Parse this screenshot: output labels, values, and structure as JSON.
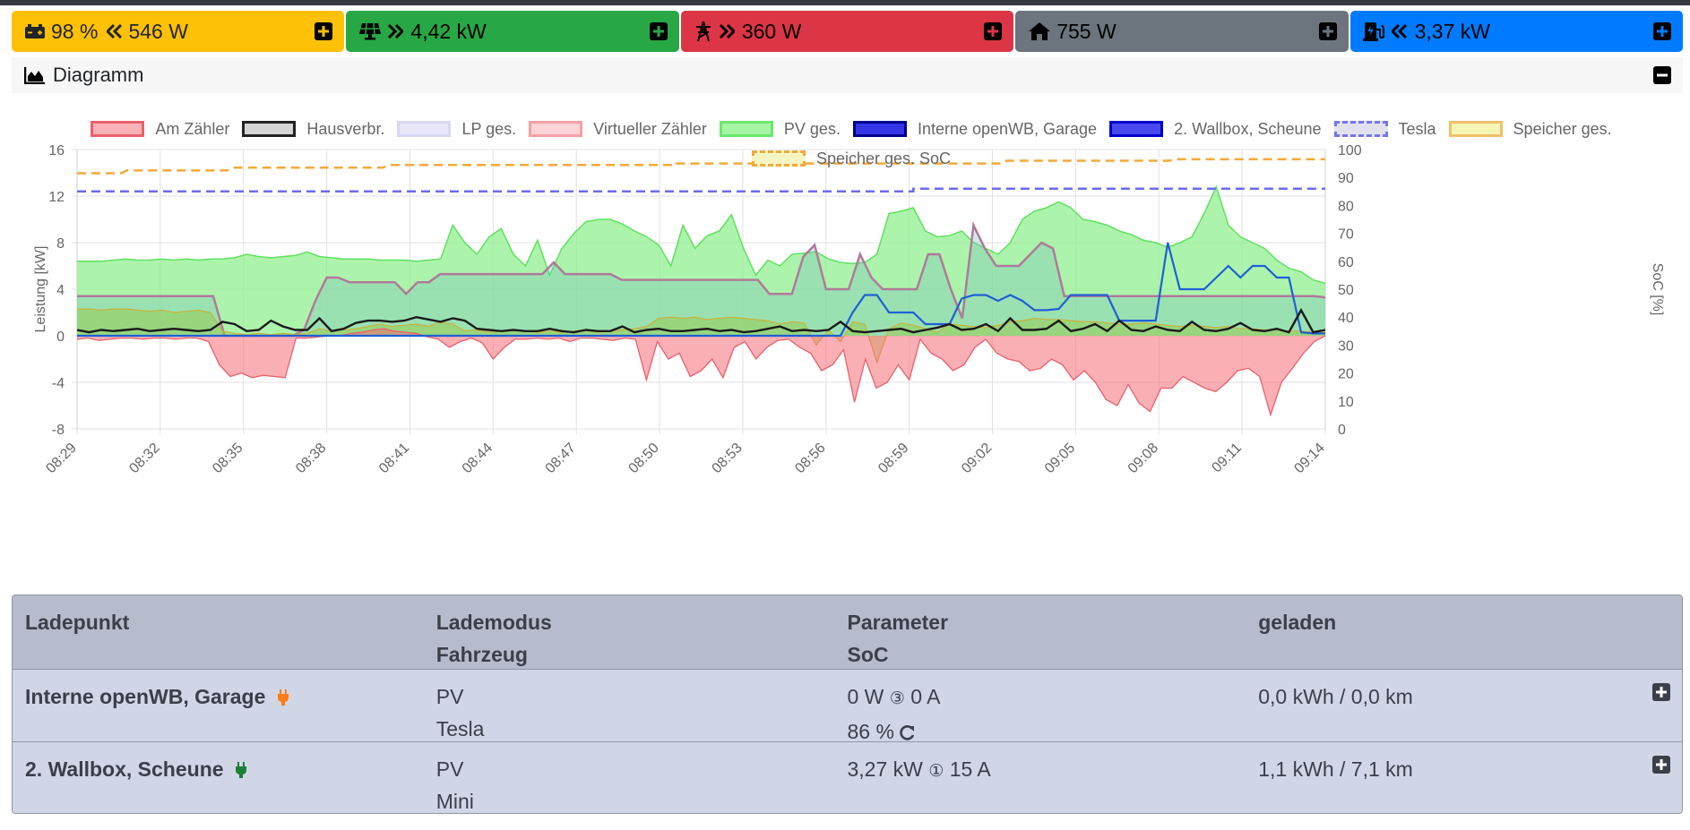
{
  "status": {
    "battery": {
      "soc": "98 %",
      "power": "546 W",
      "icon": "battery-icon",
      "direction_icon": "double-chevron-left-icon",
      "color": "#ffc107"
    },
    "pv": {
      "power": "4,42 kW",
      "icon": "solar-panel-icon",
      "direction_icon": "double-chevron-right-icon",
      "color": "#28a745"
    },
    "grid": {
      "power": "360 W",
      "icon": "power-tower-icon",
      "direction_icon": "double-chevron-right-icon",
      "color": "#dc3545"
    },
    "house": {
      "power": "755 W",
      "icon": "home-icon",
      "color": "#6c757d"
    },
    "chargepoints": {
      "power": "3,37 kW",
      "icon": "charging-station-icon",
      "direction_icon": "double-chevron-left-icon",
      "color": "#007bff"
    }
  },
  "diagram": {
    "title": "Diagramm",
    "icon": "chart-area-icon",
    "collapse_icon": "minus-square-icon"
  },
  "chart_data": {
    "type": "area",
    "ylabel": "Leistung [kW]",
    "y2label": "SoC [%]",
    "ylim": [
      -8,
      16
    ],
    "y2lim": [
      0,
      100
    ],
    "yticks": [
      "16",
      "12",
      "8",
      "4",
      "0",
      "-4",
      "-8"
    ],
    "y2ticks": [
      "100",
      "90",
      "80",
      "70",
      "60",
      "50",
      "40",
      "30",
      "20",
      "10",
      "0"
    ],
    "xticks": [
      "08:29",
      "08:32",
      "08:35",
      "08:38",
      "08:41",
      "08:44",
      "08:47",
      "08:50",
      "08:53",
      "08:56",
      "08:59",
      "09:02",
      "09:05",
      "09:08",
      "09:11",
      "09:14"
    ],
    "grid": true,
    "legend_position": "top",
    "legend": [
      {
        "name": "Am Zähler",
        "fill": "#f9b3b8",
        "border": "#e8616b",
        "dashed": false
      },
      {
        "name": "Hausverbr.",
        "fill": "#d4d4d4",
        "border": "#222222",
        "dashed": false
      },
      {
        "name": "LP ges.",
        "fill": "#e6e6f8",
        "border": "#d7d7f5",
        "dashed": false
      },
      {
        "name": "Virtueller Zähler",
        "fill": "#fcd3d6",
        "border": "#f2a0a6",
        "dashed": false
      },
      {
        "name": "PV ges.",
        "fill": "#a5f5a5",
        "border": "#6be86b",
        "dashed": false
      },
      {
        "name": "Interne openWB, Garage",
        "fill": "#3535e8",
        "border": "#00008b",
        "dashed": false
      },
      {
        "name": "2. Wallbox, Scheune",
        "fill": "#4848ee",
        "border": "#0000cd",
        "dashed": false
      },
      {
        "name": "Tesla",
        "fill": "#e2e2ee",
        "border": "#7575ef",
        "dashed": true
      },
      {
        "name": "Speicher ges.",
        "fill": "#f5f5b4",
        "border": "#f0c06a",
        "dashed": false
      },
      {
        "name": "Speicher ges. SoC",
        "fill": "#f5f5c4",
        "border": "#f4a938",
        "dashed": true
      }
    ],
    "series": [
      {
        "name": "PV ges.",
        "values": [
          6.4,
          6.4,
          6.4,
          6.5,
          6.6,
          6.5,
          6.5,
          6.6,
          6.5,
          6.6,
          6.5,
          6.6,
          6.6,
          6.7,
          7.0,
          6.8,
          6.7,
          6.8,
          6.9,
          7.2,
          6.8,
          6.7,
          6.6,
          6.6,
          6.6,
          6.5,
          6.5,
          6.5,
          6.4,
          6.5,
          6.6,
          9.5,
          8.0,
          7.0,
          8.5,
          9.2,
          7.0,
          6.0,
          8.2,
          5.2,
          7.5,
          8.8,
          9.8,
          10.0,
          10.0,
          9.6,
          9.0,
          8.5,
          7.8,
          6.0,
          9.5,
          7.5,
          8.6,
          9.0,
          10.4,
          7.5,
          5.2,
          6.5,
          6.0,
          7.0,
          7.1,
          7.2,
          6.6,
          6.3,
          6.2,
          6.3,
          7.0,
          10.5,
          10.7,
          11.0,
          9.0,
          8.5,
          8.6,
          9.0,
          8.0,
          7.5,
          7.0,
          8.0,
          10.0,
          10.7,
          11.0,
          11.5,
          11.0,
          10.0,
          9.8,
          9.5,
          9.0,
          8.7,
          8.2,
          8.0,
          7.6,
          8.0,
          8.5,
          10.5,
          12.8,
          9.5,
          8.5,
          8.0,
          7.5,
          6.5,
          5.8,
          5.5,
          4.8,
          4.5
        ]
      },
      {
        "name": "Hausverbr.",
        "values": [
          0.5,
          0.3,
          0.5,
          0.4,
          0.5,
          0.6,
          0.4,
          0.5,
          0.6,
          0.5,
          0.4,
          0.5,
          1.2,
          1.0,
          0.4,
          0.5,
          1.3,
          0.8,
          0.5,
          0.5,
          1.5,
          0.4,
          0.6,
          1.1,
          1.3,
          1.3,
          1.2,
          1.3,
          1.6,
          1.4,
          1.2,
          1.5,
          1.3,
          0.6,
          0.5,
          0.4,
          0.5,
          0.4,
          0.4,
          0.6,
          0.4,
          0.3,
          0.5,
          0.4,
          0.4,
          0.8,
          0.3,
          0.5,
          0.6,
          0.4,
          0.4,
          0.5,
          0.6,
          0.4,
          0.5,
          0.3,
          0.4,
          0.6,
          0.8,
          0.4,
          0.5,
          0.4,
          0.5,
          1.2,
          0.4,
          0.3,
          0.4,
          0.5,
          0.6,
          0.3,
          0.5,
          0.7,
          1.0,
          0.5,
          0.6,
          1.0,
          0.4,
          1.5,
          0.5,
          0.5,
          0.6,
          1.3,
          0.4,
          0.6,
          1.0,
          0.4,
          1.3,
          0.5,
          0.4,
          0.8,
          0.5,
          0.4,
          1.2,
          0.5,
          0.4,
          0.6,
          1.1,
          0.5,
          0.4,
          0.6,
          0.3,
          2.2,
          0.3,
          0.5
        ]
      },
      {
        "name": "Am Zähler",
        "values": [
          -0.3,
          -0.2,
          -0.4,
          -0.3,
          -0.2,
          -0.2,
          -0.3,
          -0.2,
          -0.2,
          -0.3,
          -0.2,
          -0.2,
          -0.5,
          -2.5,
          -3.5,
          -3.2,
          -3.6,
          -3.4,
          -3.5,
          -3.6,
          -0.2,
          -0.2,
          -0.1,
          0.0,
          0.0,
          0.2,
          0.3,
          0.5,
          0.6,
          0.4,
          0.3,
          0.2,
          -0.1,
          -0.3,
          -1.0,
          -0.5,
          -0.2,
          -0.6,
          -2.0,
          -1.0,
          -0.3,
          -0.3,
          -0.2,
          -0.3,
          -0.2,
          -0.5,
          -0.2,
          -0.2,
          -0.3,
          -0.4,
          -0.2,
          -0.3,
          -3.8,
          -0.5,
          -2.0,
          -1.5,
          -3.5,
          -3.0,
          -2.0,
          -3.6,
          -1.0,
          -0.5,
          -2.0,
          -1.0,
          -0.4,
          -0.3,
          -1.0,
          -1.5,
          -3.0,
          -2.5,
          -1.2,
          -5.7,
          -2.0,
          -4.5,
          -4.0,
          -2.5,
          -3.8,
          -0.3,
          -1.5,
          -2.0,
          -3.0,
          -2.5,
          -1.0,
          -0.3,
          -1.5,
          -2.0,
          -2.2,
          -3.0,
          -2.8,
          -2.0,
          -2.5,
          -3.8,
          -3.0,
          -4.0,
          -5.5,
          -6.0,
          -4.2,
          -5.8,
          -6.5,
          -4.5,
          -4.5,
          -3.5,
          -4.0,
          -4.5,
          -4.8,
          -4.0,
          -3.0,
          -2.8,
          -3.5,
          -6.8,
          -4.0,
          -2.8,
          -1.5,
          -0.5,
          0.0
        ]
      }
    ]
  },
  "table": {
    "headers": {
      "ladepunkt": "Ladepunkt",
      "lademodus": "Lademodus",
      "fahrzeug": "Fahrzeug",
      "parameter": "Parameter",
      "soc": "SoC",
      "geladen": "geladen"
    },
    "rows": [
      {
        "name": "Interne openWB, Garage",
        "plug_icon": "plug-icon",
        "plug_color": "#fd7e14",
        "mode": "PV",
        "vehicle": "Tesla",
        "power": "0 W",
        "phases_icon": "circled-three-icon",
        "current": "0 A",
        "soc": "86 %",
        "refresh_icon": "refresh-icon",
        "charged": "0,0 kWh / 0,0 km",
        "expand_icon": "plus-square-icon"
      },
      {
        "name": "2. Wallbox, Scheune",
        "plug_icon": "plug-icon",
        "plug_color": "#1e7e34",
        "mode": "PV",
        "vehicle": "Mini",
        "power": "3,27 kW",
        "phases_icon": "circled-one-icon",
        "current": "15 A",
        "soc": "",
        "charged": "1,1 kWh / 7,1 km",
        "expand_icon": "plus-square-icon"
      }
    ]
  }
}
